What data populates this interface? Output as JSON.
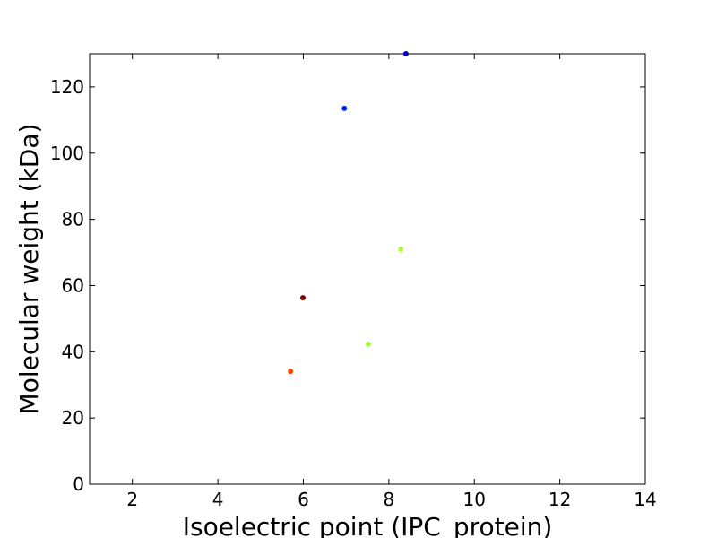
{
  "chart_data": {
    "type": "scatter",
    "x_label": "Isoelectric point (IPC_protein)",
    "y_label": "Molecular weight (kDa)",
    "x": [
      8.4,
      6.96,
      8.28,
      5.99,
      7.52,
      5.7
    ],
    "values": [
      130,
      113.5,
      71.0,
      56.3,
      42.3,
      34.1
    ],
    "colors": [
      "#0000b4",
      "#0022ff",
      "#a6ff33",
      "#7f0000",
      "#a6ff33",
      "#ff4800"
    ],
    "xlim": [
      1,
      14
    ],
    "xticks": [
      2,
      4,
      6,
      8,
      10,
      12,
      14
    ],
    "ylim": [
      0,
      130
    ],
    "yticks": [
      0,
      20,
      40,
      60,
      80,
      100,
      120
    ],
    "grid": false
  }
}
